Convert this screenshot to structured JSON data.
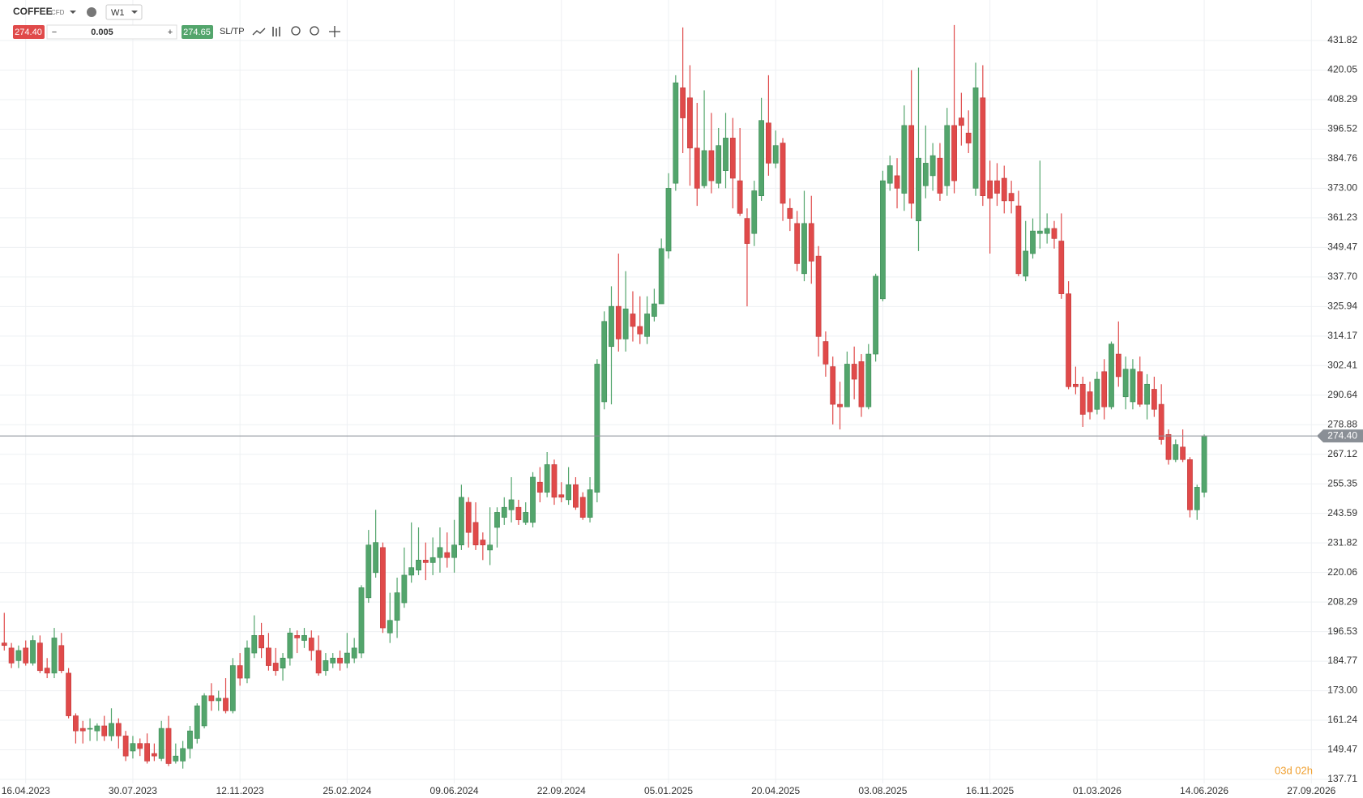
{
  "toolbar": {
    "symbol": "COFFEE",
    "tag": "CFD",
    "timeframe": "W1",
    "bid": "274.40",
    "volume": "0.005",
    "ask": "274.65",
    "sltp": "SL/TP"
  },
  "chart_data": {
    "type": "candlestick",
    "up_color": "#53a56c",
    "down_color": "#e04a4a",
    "grid": true,
    "open": [
      192,
      190,
      185,
      190,
      184,
      192,
      182,
      180,
      191,
      180,
      163,
      158,
      158,
      157,
      159,
      155,
      160,
      155,
      149,
      152,
      152,
      148,
      146,
      158,
      145,
      145,
      150,
      154,
      159,
      171,
      169,
      170,
      165,
      183,
      178,
      188,
      195,
      190,
      184,
      182,
      186,
      195,
      193,
      194,
      189,
      181,
      184,
      186,
      184,
      186,
      188,
      210,
      220,
      230,
      196,
      201,
      208,
      219,
      221,
      225,
      224,
      226,
      228,
      226,
      231,
      248,
      240,
      233,
      229,
      238,
      242,
      245,
      246,
      240,
      240,
      256,
      252,
      263,
      251,
      249,
      255,
      250,
      242,
      252,
      288,
      310,
      326,
      313,
      323,
      318,
      314,
      322,
      327,
      348,
      375,
      413,
      409,
      389,
      374,
      388,
      375,
      380,
      393,
      376,
      361,
      355,
      370,
      399,
      383,
      391,
      365,
      359,
      339,
      359,
      346,
      312,
      302,
      287,
      286,
      303,
      304,
      286,
      307,
      329,
      375,
      378,
      371,
      398,
      360,
      374,
      378,
      385,
      374,
      398,
      401,
      395,
      373,
      409,
      376,
      376,
      377,
      371,
      366,
      338,
      347,
      355,
      355,
      357,
      352,
      331,
      295,
      295,
      292,
      285,
      300,
      286,
      307,
      290,
      288,
      300,
      287,
      293,
      287,
      275,
      265,
      270,
      265,
      245,
      252
    ],
    "high": [
      204,
      192,
      191,
      193,
      195,
      195,
      186,
      198,
      196,
      182,
      164,
      161,
      162,
      160,
      163,
      166,
      162,
      157,
      155,
      154,
      156,
      152,
      161,
      163,
      152,
      153,
      159,
      168,
      172,
      176,
      173,
      178,
      186,
      188,
      193,
      203,
      200,
      196,
      190,
      188,
      198,
      197,
      198,
      197,
      195,
      188,
      188,
      189,
      196,
      194,
      215,
      237,
      245,
      232,
      212,
      218,
      230,
      240,
      238,
      232,
      234,
      238,
      236,
      241,
      255,
      250,
      248,
      236,
      246,
      246,
      250,
      258,
      249,
      248,
      260,
      262,
      268,
      265,
      256,
      262,
      258,
      252,
      258,
      305,
      324,
      334,
      347,
      340,
      332,
      330,
      330,
      333,
      353,
      379,
      418,
      437,
      422,
      407,
      412,
      403,
      397,
      403,
      401,
      397,
      365,
      376,
      409,
      418,
      396,
      393,
      369,
      364,
      372,
      370,
      350,
      316,
      306,
      296,
      308,
      310,
      307,
      311,
      339,
      380,
      386,
      385,
      406,
      420,
      421,
      398,
      391,
      391,
      405,
      438,
      411,
      404,
      423,
      422,
      384,
      383,
      382,
      376,
      372,
      360,
      361,
      384,
      363,
      360,
      363,
      336,
      302,
      298,
      296,
      300,
      305,
      312,
      320,
      306,
      305,
      306,
      299,
      298,
      295,
      277,
      273,
      277,
      266,
      255,
      275
    ],
    "low": [
      189,
      182,
      182,
      183,
      183,
      180,
      178,
      178,
      180,
      162,
      152,
      152,
      153,
      153,
      153,
      153,
      150,
      145,
      146,
      147,
      144,
      145,
      145,
      143,
      144,
      142,
      146,
      152,
      158,
      165,
      165,
      164,
      164,
      175,
      176,
      186,
      186,
      181,
      179,
      177,
      183,
      188,
      190,
      185,
      179,
      179,
      182,
      181,
      182,
      184,
      186,
      208,
      218,
      196,
      192,
      194,
      206,
      216,
      219,
      217,
      219,
      220,
      222,
      220,
      229,
      230,
      229,
      225,
      223,
      230,
      239,
      240,
      239,
      239,
      238,
      248,
      250,
      247,
      248,
      247,
      245,
      241,
      240,
      248,
      285,
      287,
      308,
      308,
      312,
      311,
      311,
      320,
      327,
      345,
      372,
      387,
      374,
      366,
      373,
      371,
      373,
      373,
      365,
      362,
      326,
      350,
      368,
      378,
      381,
      360,
      356,
      340,
      336,
      335,
      306,
      298,
      279,
      277,
      286,
      289,
      282,
      285,
      304,
      328,
      372,
      365,
      364,
      361,
      348,
      369,
      372,
      368,
      370,
      371,
      390,
      387,
      370,
      366,
      347,
      366,
      363,
      363,
      338,
      336,
      345,
      349,
      351,
      349,
      329,
      293,
      291,
      278,
      281,
      283,
      281,
      285,
      294,
      285,
      285,
      286,
      281,
      282,
      271,
      263,
      264,
      264,
      242,
      241,
      250
    ],
    "close": [
      191,
      184,
      189,
      184,
      193,
      181,
      180,
      194,
      181,
      163,
      157,
      157,
      158,
      159,
      155,
      160,
      155,
      147,
      152,
      150,
      145,
      147,
      158,
      144,
      147,
      150,
      157,
      167,
      171,
      169,
      170,
      165,
      183,
      178,
      190,
      195,
      190,
      183,
      181,
      186,
      196,
      194,
      195,
      189,
      180,
      185,
      186,
      184,
      188,
      190,
      214,
      231,
      232,
      198,
      201,
      212,
      219,
      222,
      225,
      224,
      226,
      230,
      226,
      231,
      250,
      236,
      231,
      231,
      231,
      244,
      246,
      249,
      241,
      244,
      258,
      252,
      263,
      250,
      250,
      255,
      246,
      242,
      253,
      303,
      320,
      326,
      313,
      325,
      318,
      315,
      323,
      327,
      349,
      373,
      415,
      401,
      389,
      373,
      388,
      376,
      390,
      393,
      377,
      363,
      351,
      372,
      400,
      383,
      390,
      367,
      361,
      343,
      359,
      344,
      314,
      303,
      287,
      286,
      303,
      297,
      286,
      307,
      338,
      376,
      382,
      373,
      398,
      367,
      385,
      383,
      386,
      371,
      398,
      376,
      398,
      391,
      413,
      370,
      369,
      371,
      368,
      368,
      339,
      348,
      356,
      356,
      357,
      353,
      331,
      294,
      294,
      283,
      284,
      297,
      286,
      311,
      298,
      301,
      301,
      287,
      295,
      285,
      273,
      265,
      271,
      265,
      245,
      254,
      274.4
    ],
    "xlim": [
      -0.6,
      186.6
    ],
    "xticks": [
      {
        "value": 3,
        "label": "16.04.2023"
      },
      {
        "value": 18,
        "label": "30.07.2023"
      },
      {
        "value": 33,
        "label": "12.11.2023"
      },
      {
        "value": 48,
        "label": "25.02.2024"
      },
      {
        "value": 63,
        "label": "09.06.2024"
      },
      {
        "value": 78,
        "label": "22.09.2024"
      },
      {
        "value": 93,
        "label": "05.01.2025"
      },
      {
        "value": 108,
        "label": "20.04.2025"
      },
      {
        "value": 123,
        "label": "03.08.2025"
      },
      {
        "value": 138,
        "label": "16.11.2025"
      },
      {
        "value": 153,
        "label": "01.03.2026"
      },
      {
        "value": 168,
        "label": "14.06.2026"
      },
      {
        "value": 183,
        "label": "27.09.2026"
      }
    ],
    "ylim": [
      137.71,
      431.82
    ],
    "yticks": [
      137.71,
      149.47,
      161.24,
      {
        "value": 173,
        "label": "173.00"
      },
      184.77,
      196.53,
      208.29,
      220.06,
      231.82,
      243.59,
      255.35,
      267.12,
      278.88,
      290.64,
      302.41,
      314.17,
      325.94,
      {
        "value": 337.7,
        "label": "337.70"
      },
      349.47,
      361.23,
      {
        "value": 373,
        "label": "373.00"
      },
      384.76,
      396.52,
      408.29,
      420.05,
      431.82
    ],
    "last_price": {
      "value": 274.4,
      "label": "274.40"
    },
    "countdown": "03d 02h"
  }
}
